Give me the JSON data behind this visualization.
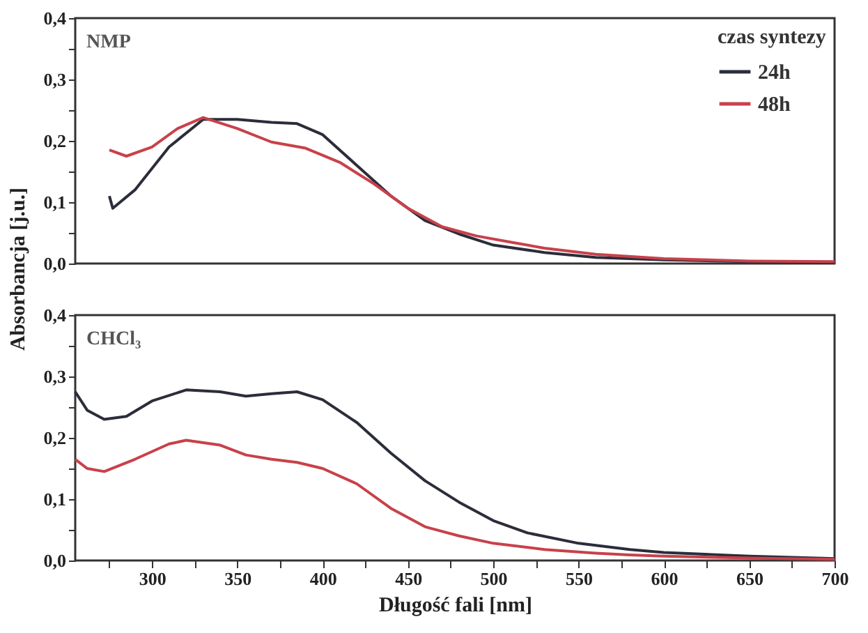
{
  "chart_data": [
    {
      "type": "line",
      "ylabel": "Absorbancja [j.u.]",
      "legend_title": "czas syntezy",
      "legend": "top right",
      "annotations": [
        "NMP"
      ],
      "tick_labels": "y",
      "xlim": [
        255,
        700
      ],
      "ylim": [
        0,
        0.4
      ],
      "yticks": [
        {
          "value": 0,
          "label": "0,0"
        },
        {
          "value": 0.05,
          "label": null
        },
        {
          "value": 0.1,
          "label": "0,1"
        },
        {
          "value": 0.15,
          "label": null
        },
        {
          "value": 0.2,
          "label": "0,2"
        },
        {
          "value": 0.25,
          "label": null
        },
        {
          "value": 0.3,
          "label": "0,3"
        },
        {
          "value": 0.35,
          "label": null
        },
        {
          "value": 0.4,
          "label": "0,4"
        }
      ],
      "series": [
        {
          "name": "24h",
          "color": "#2b2d3a",
          "x": [
            275,
            277,
            290,
            310,
            330,
            350,
            370,
            385,
            400,
            420,
            440,
            460,
            480,
            500,
            530,
            560,
            600,
            650,
            700
          ],
          "values": [
            0.11,
            0.09,
            0.12,
            0.19,
            0.235,
            0.235,
            0.23,
            0.228,
            0.21,
            0.16,
            0.11,
            0.07,
            0.048,
            0.03,
            0.018,
            0.01,
            0.006,
            0.003,
            0.002
          ]
        },
        {
          "name": "48h",
          "color": "#c8414a",
          "x": [
            275,
            285,
            300,
            315,
            330,
            350,
            370,
            390,
            410,
            430,
            450,
            470,
            490,
            510,
            530,
            560,
            600,
            650,
            700
          ],
          "values": [
            0.185,
            0.175,
            0.19,
            0.22,
            0.238,
            0.22,
            0.198,
            0.188,
            0.165,
            0.13,
            0.09,
            0.06,
            0.045,
            0.035,
            0.025,
            0.015,
            0.008,
            0.004,
            0.003
          ]
        }
      ]
    },
    {
      "type": "line",
      "xlabel": "Długość fali [nm]",
      "annotations": [
        "CHCl₃"
      ],
      "xlim": [
        255,
        700
      ],
      "ylim": [
        0,
        0.4
      ],
      "xticks": [
        {
          "value": 275,
          "label": null
        },
        {
          "value": 300,
          "label": "300"
        },
        {
          "value": 325,
          "label": null
        },
        {
          "value": 350,
          "label": "350"
        },
        {
          "value": 375,
          "label": null
        },
        {
          "value": 400,
          "label": "400"
        },
        {
          "value": 425,
          "label": null
        },
        {
          "value": 450,
          "label": "450"
        },
        {
          "value": 475,
          "label": null
        },
        {
          "value": 500,
          "label": "500"
        },
        {
          "value": 525,
          "label": null
        },
        {
          "value": 550,
          "label": "550"
        },
        {
          "value": 575,
          "label": null
        },
        {
          "value": 600,
          "label": "600"
        },
        {
          "value": 625,
          "label": null
        },
        {
          "value": 650,
          "label": "650"
        },
        {
          "value": 675,
          "label": null
        },
        {
          "value": 700,
          "label": "700"
        }
      ],
      "yticks": [
        {
          "value": 0,
          "label": "0,0"
        },
        {
          "value": 0.05,
          "label": null
        },
        {
          "value": 0.1,
          "label": "0,1"
        },
        {
          "value": 0.15,
          "label": null
        },
        {
          "value": 0.2,
          "label": "0,2"
        },
        {
          "value": 0.25,
          "label": null
        },
        {
          "value": 0.3,
          "label": "0,3"
        },
        {
          "value": 0.35,
          "label": null
        },
        {
          "value": 0.4,
          "label": "0,4"
        }
      ],
      "series": [
        {
          "color": "#2b2d3a",
          "x": [
            255,
            262,
            272,
            285,
            300,
            320,
            340,
            355,
            370,
            385,
            400,
            420,
            440,
            460,
            480,
            500,
            520,
            550,
            580,
            600,
            650,
            700
          ],
          "values": [
            0.275,
            0.245,
            0.23,
            0.235,
            0.26,
            0.278,
            0.275,
            0.268,
            0.272,
            0.275,
            0.262,
            0.225,
            0.175,
            0.13,
            0.095,
            0.065,
            0.045,
            0.028,
            0.018,
            0.013,
            0.007,
            0.003
          ]
        },
        {
          "color": "#c8414a",
          "x": [
            255,
            262,
            272,
            290,
            310,
            320,
            340,
            355,
            370,
            385,
            400,
            420,
            440,
            460,
            480,
            500,
            530,
            560,
            580,
            600,
            650,
            700
          ],
          "values": [
            0.165,
            0.15,
            0.145,
            0.165,
            0.19,
            0.196,
            0.188,
            0.172,
            0.165,
            0.16,
            0.15,
            0.125,
            0.085,
            0.055,
            0.04,
            0.028,
            0.018,
            0.012,
            0.009,
            0.007,
            0.004,
            0.002
          ]
        }
      ]
    }
  ]
}
